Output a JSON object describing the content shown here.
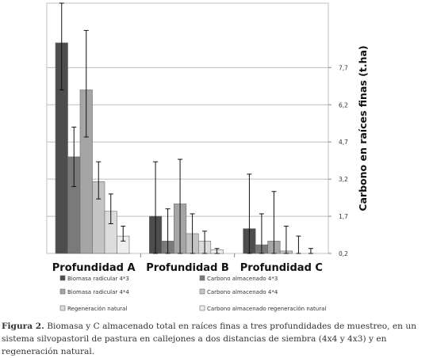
{
  "chart_data": {
    "type": "bar",
    "categories": [
      "Profundidad A",
      "Profundidad B",
      "Profundidad C"
    ],
    "series": [
      {
        "name": "Biomasa radicular  4*3",
        "color": "#4d4d4d",
        "values": [
          8.7,
          1.7,
          1.2
        ],
        "err_low": [
          6.8,
          0.2,
          0.2
        ],
        "err_high": [
          10.3,
          3.9,
          3.4
        ]
      },
      {
        "name": "Carbono almacenado  4*3",
        "color": "#7a7a7a",
        "values": [
          4.1,
          0.7,
          0.55
        ],
        "err_low": [
          2.9,
          0.2,
          0.2
        ],
        "err_high": [
          5.3,
          2.0,
          1.8
        ]
      },
      {
        "name": "Biomasa radicular  4*4",
        "color": "#a5a5a5",
        "values": [
          6.8,
          2.2,
          0.7
        ],
        "err_low": [
          4.9,
          0.2,
          0.2
        ],
        "err_high": [
          9.2,
          4.0,
          2.7
        ]
      },
      {
        "name": "Carbono almacenado  4*4",
        "color": "#c4c4c4",
        "values": [
          3.1,
          1.0,
          0.3
        ],
        "err_low": [
          2.4,
          0.2,
          0.2
        ],
        "err_high": [
          3.9,
          1.8,
          1.3
        ]
      },
      {
        "name": "Regeneración natural",
        "color": "#dcdcdc",
        "values": [
          1.9,
          0.7,
          0.2
        ],
        "err_low": [
          1.4,
          0.2,
          0.2
        ],
        "err_high": [
          2.6,
          1.1,
          0.9
        ]
      },
      {
        "name": "Carbono almacenado regeneración natural",
        "color": "#eeeeee",
        "values": [
          0.9,
          0.35,
          0.15
        ],
        "err_low": [
          0.7,
          0.2,
          0.2
        ],
        "err_high": [
          1.3,
          0.4,
          0.4
        ]
      }
    ],
    "yaxis_ticks": [
      "0,2",
      "1,7",
      "3,2",
      "4,7",
      "6,2",
      "7,7"
    ],
    "ylim": [
      0.2,
      10.3
    ],
    "ylabel": "Carbono en raíces finas (t.ha)",
    "xlabel": "",
    "title": "",
    "grid": true,
    "legend_position": "bottom"
  },
  "caption": {
    "figure_label": "Figura 2.",
    "text": " Biomasa y C almacenado total en raíces finas a tres profundidades de muestreo, en un sistema silvopastoril de pastura en callejones a dos distancias de siembra (4x4 y 4x3) y en regeneración natural."
  }
}
